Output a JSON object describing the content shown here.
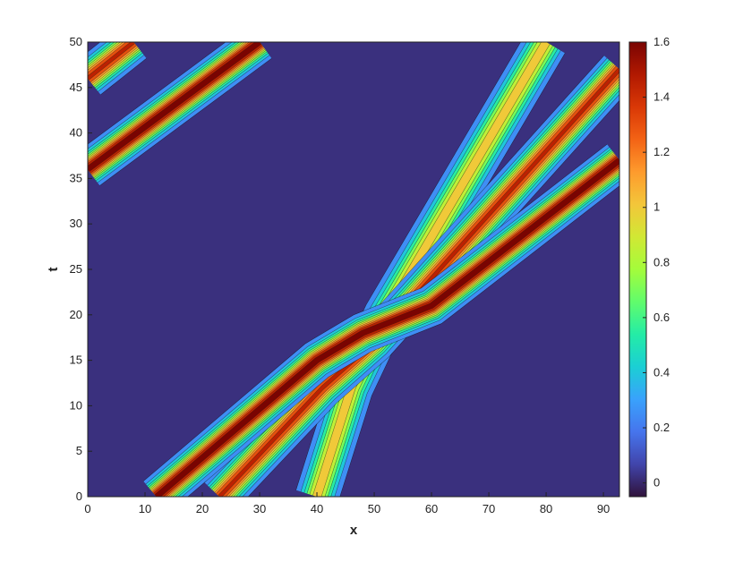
{
  "chart_data": {
    "type": "contour",
    "xlabel": "x",
    "ylabel": "t",
    "xlim": [
      0,
      92.8
    ],
    "ylim": [
      0,
      50
    ],
    "xticks": [
      0,
      10,
      20,
      30,
      40,
      50,
      60,
      70,
      80,
      90
    ],
    "yticks": [
      0,
      5,
      10,
      15,
      20,
      25,
      30,
      35,
      40,
      45,
      50
    ],
    "clim": [
      -0.05,
      1.6
    ],
    "cticks": [
      0,
      0.2,
      0.4,
      0.6,
      0.8,
      1,
      1.2,
      1.4,
      1.6
    ],
    "colormap": [
      "#30123b",
      "#4145ab",
      "#4675ed",
      "#39a2fc",
      "#1bcfd4",
      "#24eca6",
      "#61fc6c",
      "#a4fc3b",
      "#d1e834",
      "#f3c63a",
      "#fe9b2d",
      "#f36315",
      "#d93806",
      "#b11901",
      "#7a0402"
    ],
    "tracks": [
      {
        "x": [
          40,
          46,
          52,
          80
        ],
        "y": [
          0,
          12,
          20,
          50
        ],
        "peak": 1.0
      },
      {
        "x": [
          23,
          41,
          50,
          92.8
        ],
        "y": [
          0,
          12,
          17,
          47
        ],
        "peak": 1.4
      },
      {
        "x": [
          0,
          8
        ],
        "y": [
          46,
          50
        ],
        "peak": 1.4
      },
      {
        "x": [
          12,
          40,
          48,
          60,
          92.8
        ],
        "y": [
          0,
          15,
          18,
          21,
          37
        ],
        "peak": 1.6
      },
      {
        "x": [
          0,
          30
        ],
        "y": [
          36,
          50
        ],
        "peak": 1.6
      }
    ]
  }
}
